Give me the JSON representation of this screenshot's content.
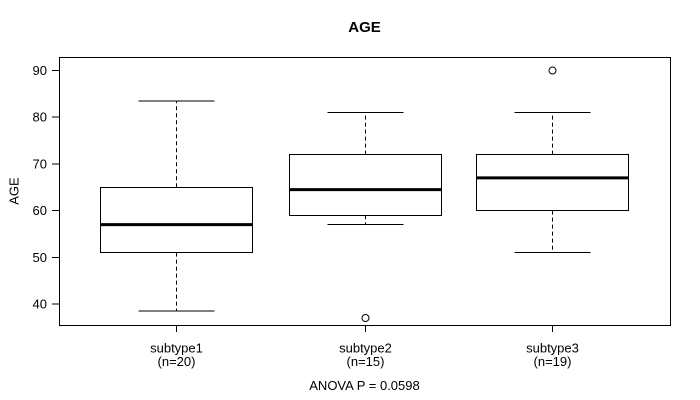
{
  "window": {
    "background": "#ffffff"
  },
  "chart_data": {
    "type": "boxplot",
    "title": "AGE",
    "ylabel": "AGE",
    "xlabel": "",
    "footer": "ANOVA P = 0.0598",
    "p_value": 0.0598,
    "ylim": [
      35.5,
      92.9
    ],
    "yticks": [
      40,
      50,
      60,
      70,
      80,
      90
    ],
    "grid": false,
    "frame": true,
    "legend": "none",
    "colors": {
      "line": "#000000",
      "box_fill": "#ffffff",
      "text": "#000000",
      "background": "#ffffff"
    },
    "groups": [
      {
        "label": "subtype1",
        "sublabel": "(n=20)",
        "n": 20,
        "whisker_low": 38.5,
        "q1": 51,
        "median": 57,
        "q3": 65,
        "whisker_high": 83.5,
        "outliers": []
      },
      {
        "label": "subtype2",
        "sublabel": "(n=15)",
        "n": 15,
        "whisker_low": 57,
        "q1": 59,
        "median": 64.5,
        "q3": 72,
        "whisker_high": 81,
        "outliers": [
          37
        ]
      },
      {
        "label": "subtype3",
        "sublabel": "(n=19)",
        "n": 19,
        "whisker_low": 51,
        "q1": 60,
        "median": 67,
        "q3": 72,
        "whisker_high": 81,
        "outliers": [
          90
        ]
      }
    ]
  }
}
